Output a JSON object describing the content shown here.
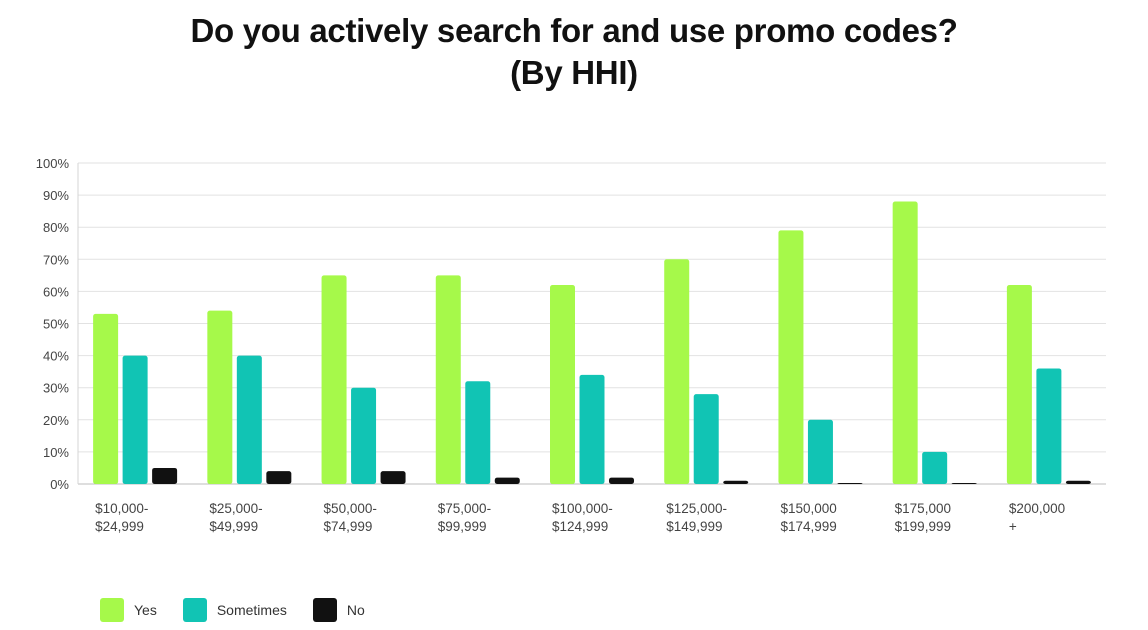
{
  "chart_data": {
    "type": "bar",
    "title": "Do you actively search for and use promo codes?",
    "subtitle": "(By HHI)",
    "categories": [
      [
        "$10,000-",
        "$24,999"
      ],
      [
        "$25,000-",
        "$49,999"
      ],
      [
        "$50,000-",
        "$74,999"
      ],
      [
        "$75,000-",
        "$99,999"
      ],
      [
        "$100,000-",
        "$124,999"
      ],
      [
        "$125,000-",
        "$149,999"
      ],
      [
        "$150,000",
        "$174,999"
      ],
      [
        "$175,000",
        "$199,999"
      ],
      [
        "$200,000",
        "+"
      ]
    ],
    "series": [
      {
        "name": "Yes",
        "color": "#a6f94a",
        "values": [
          53,
          54,
          65,
          65,
          62,
          70,
          79,
          88,
          62
        ]
      },
      {
        "name": "Sometimes",
        "color": "#11c4b4",
        "values": [
          40,
          40,
          30,
          32,
          34,
          28,
          20,
          10,
          36
        ]
      },
      {
        "name": "No",
        "color": "#111111",
        "values": [
          5,
          4,
          4,
          2,
          2,
          1,
          0,
          0,
          1
        ]
      }
    ],
    "ylim": [
      0,
      100
    ],
    "yticks": [
      "0%",
      "10%",
      "20%",
      "30%",
      "40%",
      "50%",
      "60%",
      "70%",
      "80%",
      "90%",
      "100%"
    ],
    "grid": true,
    "legend_position": "bottom-left",
    "xlabel": "",
    "ylabel": ""
  }
}
